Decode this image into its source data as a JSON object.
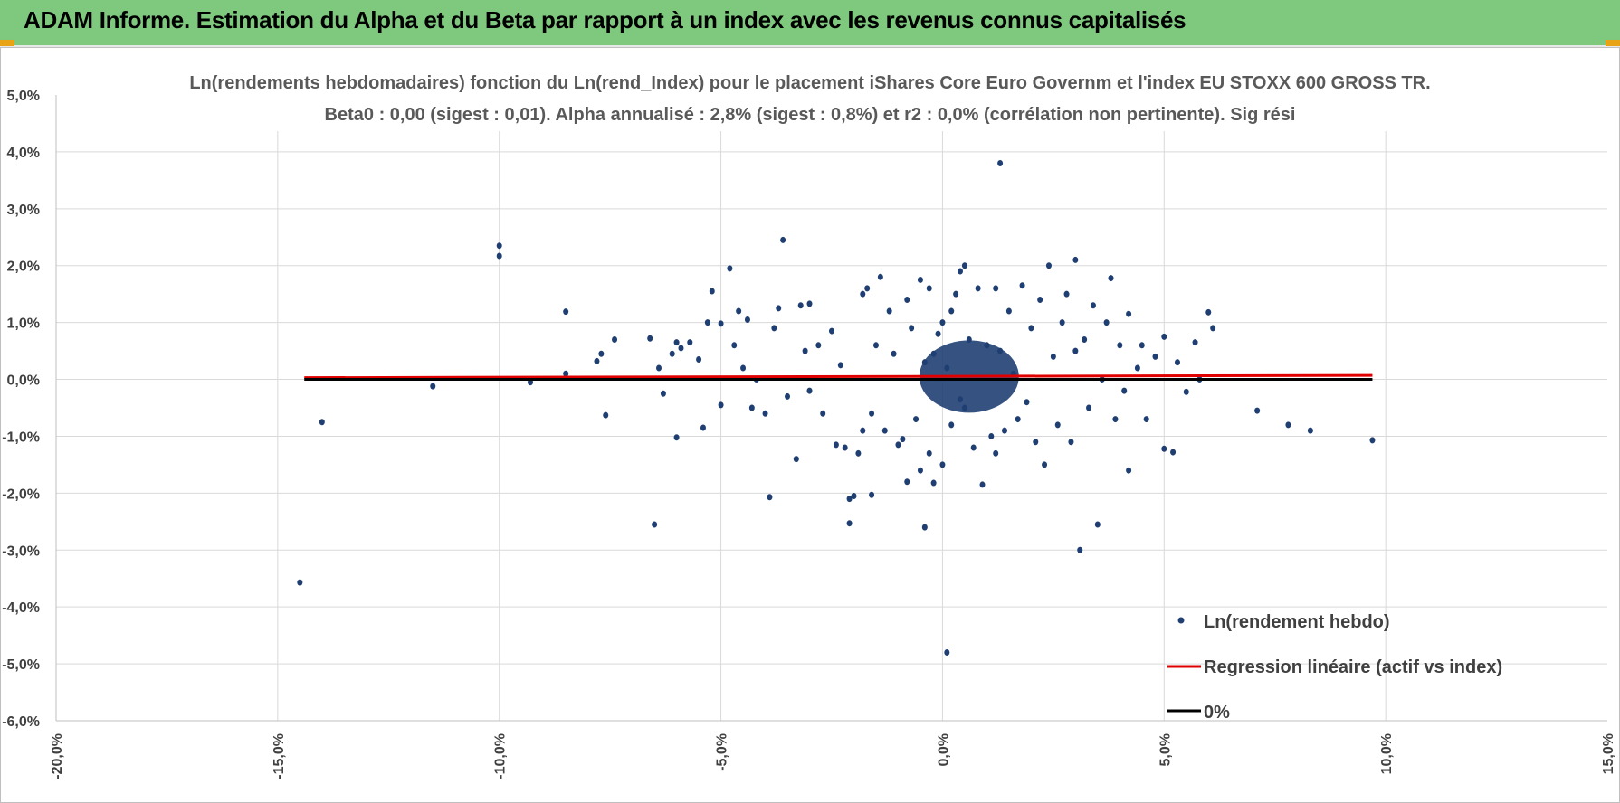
{
  "page_title": "ADAM Informe. Estimation du Alpha et du Beta par rapport à un index avec les revenus connus capitalisés",
  "colors": {
    "banner": "#7fc97f",
    "points": "#1f3f73",
    "regression": "#e00000",
    "zero_line": "#000000",
    "grid": "#d9d9d9"
  },
  "chart_data": {
    "type": "scatter",
    "title_line1": "Ln(rendements hebdomadaires) fonction du Ln(rend_Index) pour le placement iShares Core Euro Governm et l'index EU STOXX 600 GROSS TR.",
    "title_line2": "Beta0 : 0,00 (sigest : 0,01).  Alpha annualisé : 2,8% (sigest : 0,8%) et r2 : 0,0% (corrélation non pertinente). Sig rési",
    "xlim": [
      -0.2,
      0.15
    ],
    "ylim": [
      -0.06,
      0.05
    ],
    "x_ticks": [
      "-20,0%",
      "-15,0%",
      "-10,0%",
      "-5,0%",
      "0,0%",
      "5,0%",
      "10,0%",
      "15,0%"
    ],
    "y_ticks": [
      "5,0%",
      "4,0%",
      "3,0%",
      "2,0%",
      "1,0%",
      "0,0%",
      "-1,0%",
      "-2,0%",
      "-3,0%",
      "-4,0%",
      "-5,0%",
      "-6,0%"
    ],
    "grid": true,
    "legend_position": "bottom-right",
    "series": [
      {
        "name": "Ln(rendement hebdo)",
        "kind": "scatter",
        "points": [
          [
            -0.145,
            -0.0357
          ],
          [
            -0.14,
            -0.0075
          ],
          [
            -0.115,
            -0.0012
          ],
          [
            -0.1,
            0.0235
          ],
          [
            -0.1,
            0.0217
          ],
          [
            -0.093,
            -0.0005
          ],
          [
            -0.085,
            0.0119
          ],
          [
            -0.085,
            0.001
          ],
          [
            -0.078,
            0.0032
          ],
          [
            -0.077,
            0.0045
          ],
          [
            -0.076,
            -0.0063
          ],
          [
            -0.074,
            0.007
          ],
          [
            -0.066,
            0.0072
          ],
          [
            -0.065,
            -0.0255
          ],
          [
            -0.064,
            0.002
          ],
          [
            -0.063,
            -0.0025
          ],
          [
            -0.061,
            0.0045
          ],
          [
            -0.06,
            -0.0102
          ],
          [
            -0.06,
            0.0065
          ],
          [
            -0.059,
            0.0055
          ],
          [
            -0.057,
            0.0065
          ],
          [
            -0.055,
            0.0035
          ],
          [
            -0.054,
            -0.0085
          ],
          [
            -0.053,
            0.01
          ],
          [
            -0.052,
            0.0155
          ],
          [
            -0.05,
            0.0098
          ],
          [
            -0.05,
            -0.0045
          ],
          [
            -0.048,
            0.0195
          ],
          [
            -0.047,
            0.006
          ],
          [
            -0.046,
            0.012
          ],
          [
            -0.045,
            0.002
          ],
          [
            -0.044,
            0.0105
          ],
          [
            -0.043,
            -0.005
          ],
          [
            -0.042,
            0.0
          ],
          [
            -0.04,
            -0.006
          ],
          [
            -0.039,
            -0.0207
          ],
          [
            -0.038,
            0.009
          ],
          [
            -0.037,
            0.0125
          ],
          [
            -0.036,
            0.0245
          ],
          [
            -0.035,
            -0.003
          ],
          [
            -0.033,
            -0.014
          ],
          [
            -0.032,
            0.013
          ],
          [
            -0.031,
            0.005
          ],
          [
            -0.03,
            0.0133
          ],
          [
            -0.03,
            -0.002
          ],
          [
            -0.028,
            0.006
          ],
          [
            -0.027,
            -0.006
          ],
          [
            -0.025,
            0.0085
          ],
          [
            -0.024,
            -0.0115
          ],
          [
            -0.023,
            0.0025
          ],
          [
            -0.022,
            -0.012
          ],
          [
            -0.021,
            -0.0253
          ],
          [
            -0.021,
            -0.021
          ],
          [
            -0.02,
            -0.0205
          ],
          [
            -0.019,
            -0.013
          ],
          [
            -0.018,
            0.015
          ],
          [
            -0.018,
            -0.009
          ],
          [
            -0.017,
            0.016
          ],
          [
            -0.016,
            -0.006
          ],
          [
            -0.016,
            -0.0203
          ],
          [
            -0.015,
            0.006
          ],
          [
            -0.014,
            0.018
          ],
          [
            -0.013,
            -0.009
          ],
          [
            -0.012,
            0.012
          ],
          [
            -0.011,
            0.0045
          ],
          [
            -0.01,
            -0.0115
          ],
          [
            -0.009,
            -0.0105
          ],
          [
            -0.008,
            0.014
          ],
          [
            -0.008,
            -0.018
          ],
          [
            -0.007,
            0.009
          ],
          [
            -0.006,
            -0.007
          ],
          [
            -0.005,
            0.0175
          ],
          [
            -0.005,
            -0.016
          ],
          [
            -0.004,
            0.003
          ],
          [
            -0.004,
            -0.026
          ],
          [
            -0.003,
            -0.013
          ],
          [
            -0.003,
            0.016
          ],
          [
            -0.002,
            0.0045
          ],
          [
            -0.002,
            -0.0182
          ],
          [
            -0.001,
            0.008
          ],
          [
            0.0,
            -0.015
          ],
          [
            0.0,
            0.01
          ],
          [
            0.001,
            -0.048
          ],
          [
            0.001,
            0.002
          ],
          [
            0.002,
            -0.008
          ],
          [
            0.002,
            0.012
          ],
          [
            0.003,
            0.015
          ],
          [
            0.004,
            -0.0035
          ],
          [
            0.004,
            0.019
          ],
          [
            0.005,
            -0.005
          ],
          [
            0.005,
            0.02
          ],
          [
            0.006,
            0.007
          ],
          [
            0.007,
            -0.012
          ],
          [
            0.008,
            0.016
          ],
          [
            0.009,
            -0.0185
          ],
          [
            0.01,
            0.006
          ],
          [
            0.011,
            -0.01
          ],
          [
            0.012,
            0.016
          ],
          [
            0.012,
            -0.013
          ],
          [
            0.013,
            0.038
          ],
          [
            0.013,
            0.005
          ],
          [
            0.014,
            -0.009
          ],
          [
            0.015,
            0.012
          ],
          [
            0.016,
            0.001
          ],
          [
            0.017,
            -0.007
          ],
          [
            0.018,
            0.0165
          ],
          [
            0.019,
            -0.004
          ],
          [
            0.02,
            0.009
          ],
          [
            0.021,
            -0.011
          ],
          [
            0.022,
            0.014
          ],
          [
            0.023,
            -0.015
          ],
          [
            0.024,
            0.02
          ],
          [
            0.025,
            0.004
          ],
          [
            0.026,
            -0.008
          ],
          [
            0.027,
            0.01
          ],
          [
            0.028,
            0.015
          ],
          [
            0.029,
            -0.011
          ],
          [
            0.03,
            0.021
          ],
          [
            0.03,
            0.005
          ],
          [
            0.031,
            -0.03
          ],
          [
            0.032,
            0.007
          ],
          [
            0.033,
            -0.005
          ],
          [
            0.034,
            0.013
          ],
          [
            0.035,
            -0.0255
          ],
          [
            0.036,
            0.0
          ],
          [
            0.037,
            0.01
          ],
          [
            0.038,
            0.0178
          ],
          [
            0.039,
            -0.007
          ],
          [
            0.04,
            0.006
          ],
          [
            0.041,
            -0.002
          ],
          [
            0.042,
            0.0115
          ],
          [
            0.042,
            -0.016
          ],
          [
            0.044,
            0.002
          ],
          [
            0.045,
            0.006
          ],
          [
            0.046,
            -0.007
          ],
          [
            0.048,
            0.004
          ],
          [
            0.05,
            0.0075
          ],
          [
            0.05,
            -0.0122
          ],
          [
            0.052,
            -0.0128
          ],
          [
            0.053,
            0.003
          ],
          [
            0.055,
            -0.0022
          ],
          [
            0.057,
            0.0065
          ],
          [
            0.058,
            0.0
          ],
          [
            0.06,
            0.0118
          ],
          [
            0.061,
            0.009
          ],
          [
            0.071,
            -0.0055
          ],
          [
            0.078,
            -0.008
          ],
          [
            0.083,
            -0.009
          ],
          [
            0.097,
            -0.0107
          ]
        ]
      },
      {
        "name": "Regression linéaire (actif vs index)",
        "kind": "line",
        "x": [
          -0.144,
          0.097
        ],
        "y": [
          0.0003,
          0.0007
        ]
      },
      {
        "name": "0%",
        "kind": "line",
        "x": [
          -0.144,
          0.097
        ],
        "y": [
          0.0,
          0.0
        ]
      }
    ]
  }
}
